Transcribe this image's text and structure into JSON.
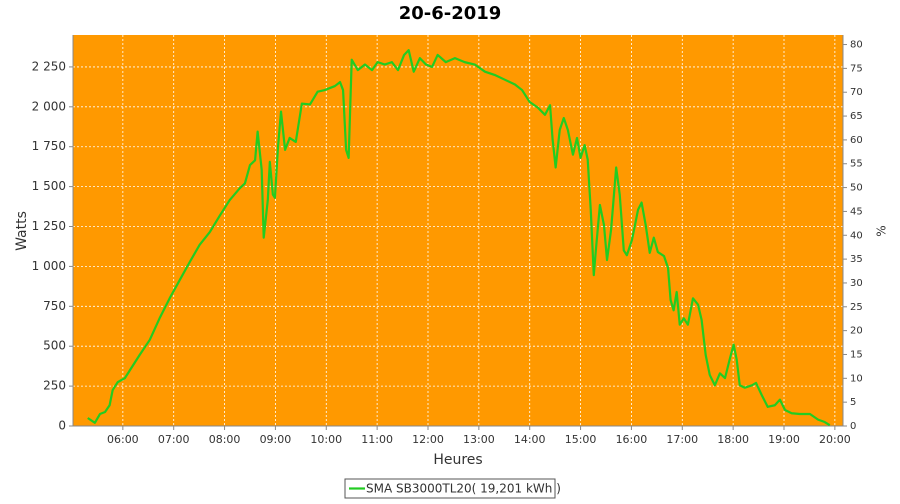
{
  "chart_data": {
    "type": "line",
    "title": "20-6-2019",
    "x_label": "Heures",
    "y_label": "Watts",
    "y2_label": "%",
    "xlim": [
      5.02,
      20.16
    ],
    "xticks": [
      {
        "value": 6,
        "label": "06:00"
      },
      {
        "value": 7,
        "label": "07:00"
      },
      {
        "value": 8,
        "label": "08:00"
      },
      {
        "value": 9,
        "label": "09:00"
      },
      {
        "value": 10,
        "label": "10:00"
      },
      {
        "value": 11,
        "label": "11:00"
      },
      {
        "value": 12,
        "label": "12:00"
      },
      {
        "value": 13,
        "label": "13:00"
      },
      {
        "value": 14,
        "label": "14:00"
      },
      {
        "value": 15,
        "label": "15:00"
      },
      {
        "value": 16,
        "label": "16:00"
      },
      {
        "value": 17,
        "label": "17:00"
      },
      {
        "value": 18,
        "label": "18:00"
      },
      {
        "value": 19,
        "label": "19:00"
      },
      {
        "value": 20,
        "label": "20:00"
      }
    ],
    "ylim": [
      0,
      2450
    ],
    "yticks": [
      0,
      250,
      500,
      750,
      {
        "value": 1000,
        "label": "1 000"
      },
      {
        "value": 1250,
        "label": "1 250"
      },
      {
        "value": 1500,
        "label": "1 500"
      },
      {
        "value": 1750,
        "label": "1 750"
      },
      {
        "value": 2000,
        "label": "2 000"
      },
      {
        "value": 2250,
        "label": "2 250"
      }
    ],
    "y2lim": [
      0,
      82
    ],
    "y2ticks": [
      0,
      5,
      10,
      15,
      20,
      25,
      30,
      35,
      40,
      45,
      50,
      55,
      60,
      65,
      70,
      75,
      80
    ],
    "grid": true,
    "background": "#ff9900",
    "x": [
      5.31,
      5.45,
      5.55,
      5.65,
      5.74,
      5.8,
      5.9,
      6.04,
      6.14,
      6.33,
      6.53,
      6.73,
      6.92,
      7.12,
      7.32,
      7.51,
      7.71,
      7.91,
      8.1,
      8.3,
      8.4,
      8.5,
      8.6,
      8.65,
      8.73,
      8.77,
      8.85,
      8.89,
      8.95,
      8.99,
      9.05,
      9.11,
      9.19,
      9.28,
      9.4,
      9.52,
      9.68,
      9.83,
      9.97,
      10.17,
      10.27,
      10.33,
      10.39,
      10.44,
      10.5,
      10.62,
      10.76,
      10.9,
      11.01,
      11.15,
      11.29,
      11.41,
      11.53,
      11.62,
      11.72,
      11.84,
      11.96,
      12.08,
      12.19,
      12.35,
      12.53,
      12.72,
      12.92,
      13.12,
      13.31,
      13.51,
      13.71,
      13.85,
      14.0,
      14.16,
      14.3,
      14.4,
      14.45,
      14.51,
      14.59,
      14.67,
      14.75,
      14.85,
      14.93,
      15.0,
      15.08,
      15.14,
      15.2,
      15.26,
      15.3,
      15.38,
      15.46,
      15.52,
      15.6,
      15.7,
      15.77,
      15.85,
      15.91,
      16.01,
      16.13,
      16.2,
      16.28,
      16.36,
      16.44,
      16.52,
      16.64,
      16.72,
      16.77,
      16.83,
      16.89,
      16.95,
      17.03,
      17.11,
      17.21,
      17.31,
      17.38,
      17.46,
      17.54,
      17.64,
      17.74,
      17.84,
      17.93,
      18.01,
      18.07,
      18.13,
      18.23,
      18.37,
      18.45,
      18.56,
      18.68,
      18.82,
      18.92,
      19.02,
      19.15,
      19.31,
      19.51,
      19.67,
      19.8,
      19.9
    ],
    "series": [
      {
        "name": "SMA SB3000TL20( 19,201 kWh )",
        "color": "#22cc22",
        "values": [
          50,
          20,
          75,
          88,
          130,
          225,
          275,
          300,
          350,
          445,
          540,
          680,
          800,
          915,
          1030,
          1135,
          1215,
          1320,
          1415,
          1490,
          1520,
          1635,
          1665,
          1845,
          1605,
          1180,
          1415,
          1655,
          1450,
          1430,
          1745,
          1970,
          1730,
          1805,
          1780,
          2020,
          2015,
          2095,
          2105,
          2130,
          2155,
          2105,
          1730,
          1680,
          2295,
          2230,
          2265,
          2230,
          2280,
          2265,
          2280,
          2230,
          2325,
          2355,
          2220,
          2305,
          2265,
          2250,
          2325,
          2280,
          2305,
          2280,
          2265,
          2220,
          2200,
          2170,
          2140,
          2105,
          2030,
          1995,
          1950,
          2010,
          1795,
          1620,
          1855,
          1930,
          1855,
          1700,
          1805,
          1680,
          1760,
          1670,
          1355,
          945,
          1100,
          1385,
          1260,
          1040,
          1230,
          1620,
          1450,
          1100,
          1070,
          1165,
          1355,
          1400,
          1260,
          1085,
          1180,
          1090,
          1065,
          990,
          790,
          725,
          840,
          635,
          675,
          635,
          800,
          760,
          665,
          445,
          320,
          255,
          330,
          300,
          415,
          510,
          415,
          255,
          240,
          255,
          270,
          195,
          120,
          130,
          165,
          100,
          80,
          75,
          75,
          40,
          25,
          5
        ]
      }
    ]
  }
}
